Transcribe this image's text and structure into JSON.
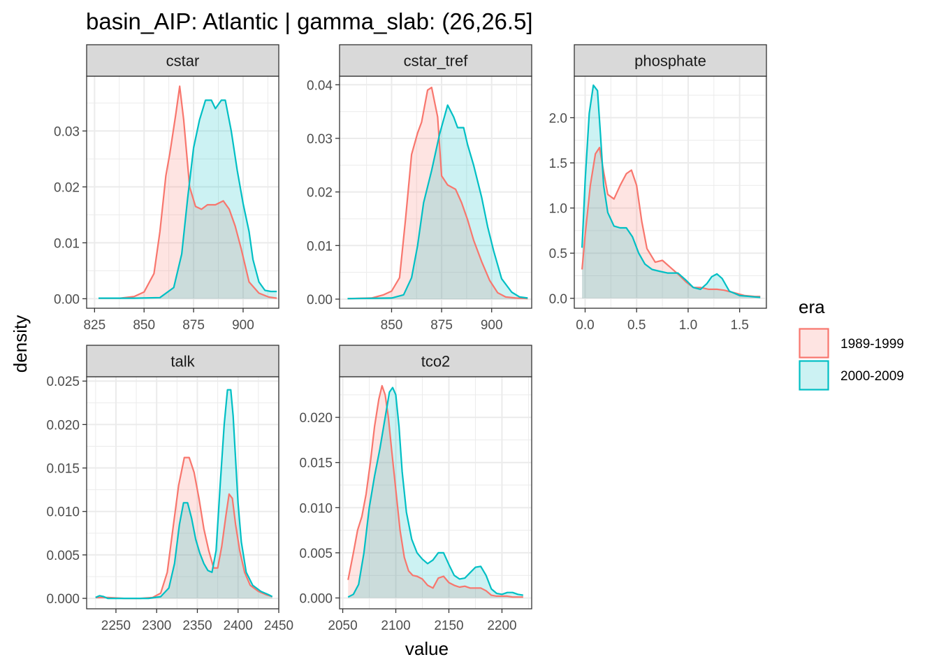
{
  "title": "basin_AIP: Atlantic | gamma_slab: (26,26.5]",
  "x_axis_label": "value",
  "y_axis_label": "density",
  "legend": {
    "title": "era",
    "entries": [
      {
        "label": "1989-1999",
        "color": "#F8766D"
      },
      {
        "label": "2000-2009",
        "color": "#00BFC4"
      }
    ]
  },
  "chart_data": [
    {
      "type": "area",
      "panel": "cstar",
      "xlim": [
        821,
        918
      ],
      "ylim": [
        -0.0017,
        0.0398
      ],
      "x_ticks": [
        825,
        850,
        875,
        900
      ],
      "y_ticks": [
        0.0,
        0.01,
        0.02,
        0.03
      ],
      "y_tick_labels": [
        "0.00",
        "0.01",
        "0.02",
        "0.03"
      ],
      "grid": true,
      "series": [
        {
          "name": "1989-1999",
          "x": [
            827,
            838,
            845,
            850,
            855,
            858,
            861,
            863,
            866,
            868,
            870,
            873,
            876,
            879,
            882,
            886,
            890,
            893,
            896,
            899,
            903,
            908,
            913,
            917
          ],
          "y": [
            0.0001,
            0.0001,
            0.0004,
            0.0012,
            0.0045,
            0.012,
            0.022,
            0.026,
            0.033,
            0.038,
            0.032,
            0.02,
            0.0165,
            0.016,
            0.0168,
            0.0168,
            0.0175,
            0.016,
            0.013,
            0.009,
            0.003,
            0.001,
            0.0003,
            0.0001
          ]
        },
        {
          "name": "2000-2009",
          "x": [
            827,
            845,
            858,
            865,
            869,
            872,
            875,
            878,
            881,
            884,
            886,
            889,
            891,
            894,
            897,
            900,
            903,
            905,
            908,
            911,
            914,
            917
          ],
          "y": [
            0.0001,
            0.0001,
            0.0002,
            0.002,
            0.008,
            0.018,
            0.027,
            0.032,
            0.0355,
            0.0355,
            0.034,
            0.0355,
            0.0355,
            0.03,
            0.023,
            0.017,
            0.012,
            0.007,
            0.003,
            0.0015,
            0.0013,
            0.0013
          ]
        }
      ]
    },
    {
      "type": "area",
      "panel": "cstar_tref",
      "xlim": [
        824,
        920
      ],
      "ylim": [
        -0.0017,
        0.0416
      ],
      "x_ticks": [
        850,
        875,
        900
      ],
      "y_ticks": [
        0.0,
        0.01,
        0.02,
        0.03,
        0.04
      ],
      "y_tick_labels": [
        "0.00",
        "0.01",
        "0.02",
        "0.03",
        "0.04"
      ],
      "grid": true,
      "series": [
        {
          "name": "1989-1999",
          "x": [
            828,
            840,
            846,
            850,
            854,
            857,
            860,
            863,
            865,
            868,
            870,
            873,
            875,
            878,
            882,
            885,
            888,
            891,
            895,
            899,
            903,
            907,
            912,
            918
          ],
          "y": [
            0.0001,
            0.0002,
            0.0008,
            0.0015,
            0.004,
            0.015,
            0.027,
            0.031,
            0.033,
            0.039,
            0.0395,
            0.034,
            0.023,
            0.0213,
            0.0205,
            0.018,
            0.0148,
            0.011,
            0.007,
            0.0035,
            0.0012,
            0.0004,
            0.0002,
            0.0001
          ]
        },
        {
          "name": "2000-2009",
          "x": [
            828,
            850,
            856,
            860,
            863,
            866,
            870,
            874,
            878,
            881,
            883,
            886,
            888,
            891,
            895,
            898,
            901,
            905,
            910,
            914,
            918
          ],
          "y": [
            0.0001,
            0.0002,
            0.0008,
            0.004,
            0.01,
            0.018,
            0.024,
            0.0308,
            0.0362,
            0.034,
            0.032,
            0.032,
            0.0288,
            0.025,
            0.019,
            0.0135,
            0.009,
            0.0038,
            0.0013,
            0.0004,
            0.0002
          ]
        }
      ]
    },
    {
      "type": "area",
      "panel": "phosphate",
      "xlim": [
        -0.105,
        1.76
      ],
      "ylim": [
        -0.11,
        2.46
      ],
      "x_ticks": [
        0.0,
        0.5,
        1.0,
        1.5
      ],
      "x_tick_labels": [
        "0.0",
        "0.5",
        "1.0",
        "1.5"
      ],
      "y_ticks": [
        0.0,
        0.5,
        1.0,
        1.5,
        2.0
      ],
      "y_tick_labels": [
        "0.0",
        "0.5",
        "1.0",
        "1.5",
        "2.0"
      ],
      "grid": true,
      "series": [
        {
          "name": "1989-1999",
          "x": [
            -0.03,
            0.0,
            0.05,
            0.1,
            0.14,
            0.18,
            0.22,
            0.28,
            0.34,
            0.4,
            0.45,
            0.5,
            0.55,
            0.6,
            0.68,
            0.75,
            0.82,
            0.9,
            0.98,
            1.05,
            1.12,
            1.2,
            1.28,
            1.35,
            1.45,
            1.55,
            1.65,
            1.7
          ],
          "y": [
            0.32,
            0.7,
            1.25,
            1.6,
            1.67,
            1.4,
            1.15,
            1.1,
            1.25,
            1.38,
            1.42,
            1.25,
            0.85,
            0.55,
            0.4,
            0.42,
            0.35,
            0.27,
            0.18,
            0.12,
            0.12,
            0.1,
            0.1,
            0.09,
            0.06,
            0.03,
            0.02,
            0.02
          ]
        },
        {
          "name": "2000-2009",
          "x": [
            -0.03,
            0.0,
            0.04,
            0.08,
            0.12,
            0.15,
            0.18,
            0.22,
            0.28,
            0.34,
            0.4,
            0.46,
            0.52,
            0.58,
            0.65,
            0.72,
            0.8,
            0.9,
            0.98,
            1.05,
            1.12,
            1.18,
            1.23,
            1.28,
            1.33,
            1.4,
            1.5,
            1.6,
            1.7
          ],
          "y": [
            0.56,
            1.3,
            2.05,
            2.36,
            2.3,
            1.8,
            1.25,
            0.95,
            0.8,
            0.78,
            0.78,
            0.68,
            0.5,
            0.38,
            0.32,
            0.3,
            0.28,
            0.28,
            0.2,
            0.12,
            0.1,
            0.16,
            0.24,
            0.27,
            0.22,
            0.08,
            0.03,
            0.02,
            0.01
          ]
        }
      ]
    },
    {
      "type": "area",
      "panel": "talk",
      "xlim": [
        2214,
        2450
      ],
      "ylim": [
        -0.0012,
        0.0255
      ],
      "x_ticks": [
        2250,
        2300,
        2350,
        2400,
        2450
      ],
      "y_ticks": [
        0.0,
        0.005,
        0.01,
        0.015,
        0.02,
        0.025
      ],
      "y_tick_labels": [
        "0.000",
        "0.005",
        "0.010",
        "0.015",
        "0.020",
        "0.025"
      ],
      "grid": true,
      "series": [
        {
          "name": "1989-1999",
          "x": [
            2225,
            2232,
            2240,
            2260,
            2280,
            2295,
            2305,
            2313,
            2320,
            2327,
            2334,
            2340,
            2346,
            2352,
            2358,
            2364,
            2370,
            2375,
            2380,
            2385,
            2389,
            2393,
            2397,
            2402,
            2408,
            2415,
            2425,
            2435,
            2442
          ],
          "y": [
            0.0001,
            0.0001,
            0.0001,
            0.0,
            0.0,
            0.0001,
            0.0006,
            0.003,
            0.008,
            0.013,
            0.0162,
            0.0162,
            0.0145,
            0.0115,
            0.008,
            0.0055,
            0.0035,
            0.0035,
            0.006,
            0.0095,
            0.012,
            0.0115,
            0.0085,
            0.0055,
            0.003,
            0.0015,
            0.0008,
            0.0004,
            0.0002
          ]
        },
        {
          "name": "2000-2009",
          "x": [
            2225,
            2230,
            2235,
            2240,
            2250,
            2270,
            2290,
            2305,
            2315,
            2322,
            2328,
            2333,
            2338,
            2343,
            2348,
            2353,
            2358,
            2363,
            2368,
            2373,
            2378,
            2383,
            2387,
            2391,
            2394,
            2397,
            2400,
            2404,
            2410,
            2418,
            2428,
            2438,
            2442
          ],
          "y": [
            0.0001,
            0.0003,
            0.0002,
            0.0,
            0.0,
            0.0,
            0.0,
            0.0002,
            0.0012,
            0.004,
            0.0085,
            0.011,
            0.011,
            0.0092,
            0.0068,
            0.0052,
            0.004,
            0.0032,
            0.003,
            0.0055,
            0.013,
            0.02,
            0.024,
            0.024,
            0.021,
            0.016,
            0.011,
            0.0065,
            0.003,
            0.0015,
            0.0008,
            0.0004,
            0.0002
          ]
        }
      ]
    },
    {
      "type": "area",
      "panel": "tco2",
      "xlim": [
        2047,
        2228
      ],
      "ylim": [
        -0.0012,
        0.0245
      ],
      "x_ticks": [
        2050,
        2100,
        2150,
        2200
      ],
      "y_ticks": [
        0.0,
        0.005,
        0.01,
        0.015,
        0.02
      ],
      "y_tick_labels": [
        "0.000",
        "0.005",
        "0.010",
        "0.015",
        "0.020"
      ],
      "grid": true,
      "series": [
        {
          "name": "1989-1999",
          "x": [
            2055,
            2060,
            2064,
            2068,
            2072,
            2076,
            2080,
            2084,
            2087,
            2090,
            2093,
            2096,
            2100,
            2104,
            2108,
            2112,
            2116,
            2120,
            2125,
            2130,
            2135,
            2140,
            2145,
            2150,
            2155,
            2160,
            2165,
            2170,
            2175,
            2180,
            2185,
            2190,
            2195,
            2200,
            2205,
            2210,
            2215,
            2220
          ],
          "y": [
            0.002,
            0.005,
            0.0075,
            0.009,
            0.0115,
            0.015,
            0.019,
            0.022,
            0.0235,
            0.0225,
            0.02,
            0.0165,
            0.012,
            0.0075,
            0.0045,
            0.003,
            0.0025,
            0.0024,
            0.0021,
            0.0014,
            0.0011,
            0.0022,
            0.0024,
            0.0017,
            0.0014,
            0.0012,
            0.0013,
            0.0011,
            0.0011,
            0.0011,
            0.0008,
            0.0003,
            0.0002,
            0.0002,
            0.0002,
            0.0001,
            0.0001,
            0.0001
          ]
        },
        {
          "name": "2000-2009",
          "x": [
            2055,
            2060,
            2065,
            2070,
            2075,
            2080,
            2085,
            2090,
            2094,
            2097,
            2100,
            2103,
            2106,
            2110,
            2115,
            2120,
            2125,
            2130,
            2135,
            2140,
            2145,
            2150,
            2155,
            2160,
            2165,
            2170,
            2175,
            2180,
            2185,
            2190,
            2195,
            2200,
            2205,
            2210,
            2215,
            2220
          ],
          "y": [
            0.0001,
            0.0004,
            0.0015,
            0.005,
            0.01,
            0.0135,
            0.0165,
            0.02,
            0.0228,
            0.0233,
            0.0225,
            0.019,
            0.014,
            0.0095,
            0.0065,
            0.005,
            0.0043,
            0.0038,
            0.0042,
            0.005,
            0.005,
            0.0037,
            0.0025,
            0.0021,
            0.0022,
            0.0028,
            0.0034,
            0.0035,
            0.0025,
            0.001,
            0.0005,
            0.0004,
            0.0006,
            0.0006,
            0.0004,
            0.0003
          ]
        }
      ]
    }
  ]
}
